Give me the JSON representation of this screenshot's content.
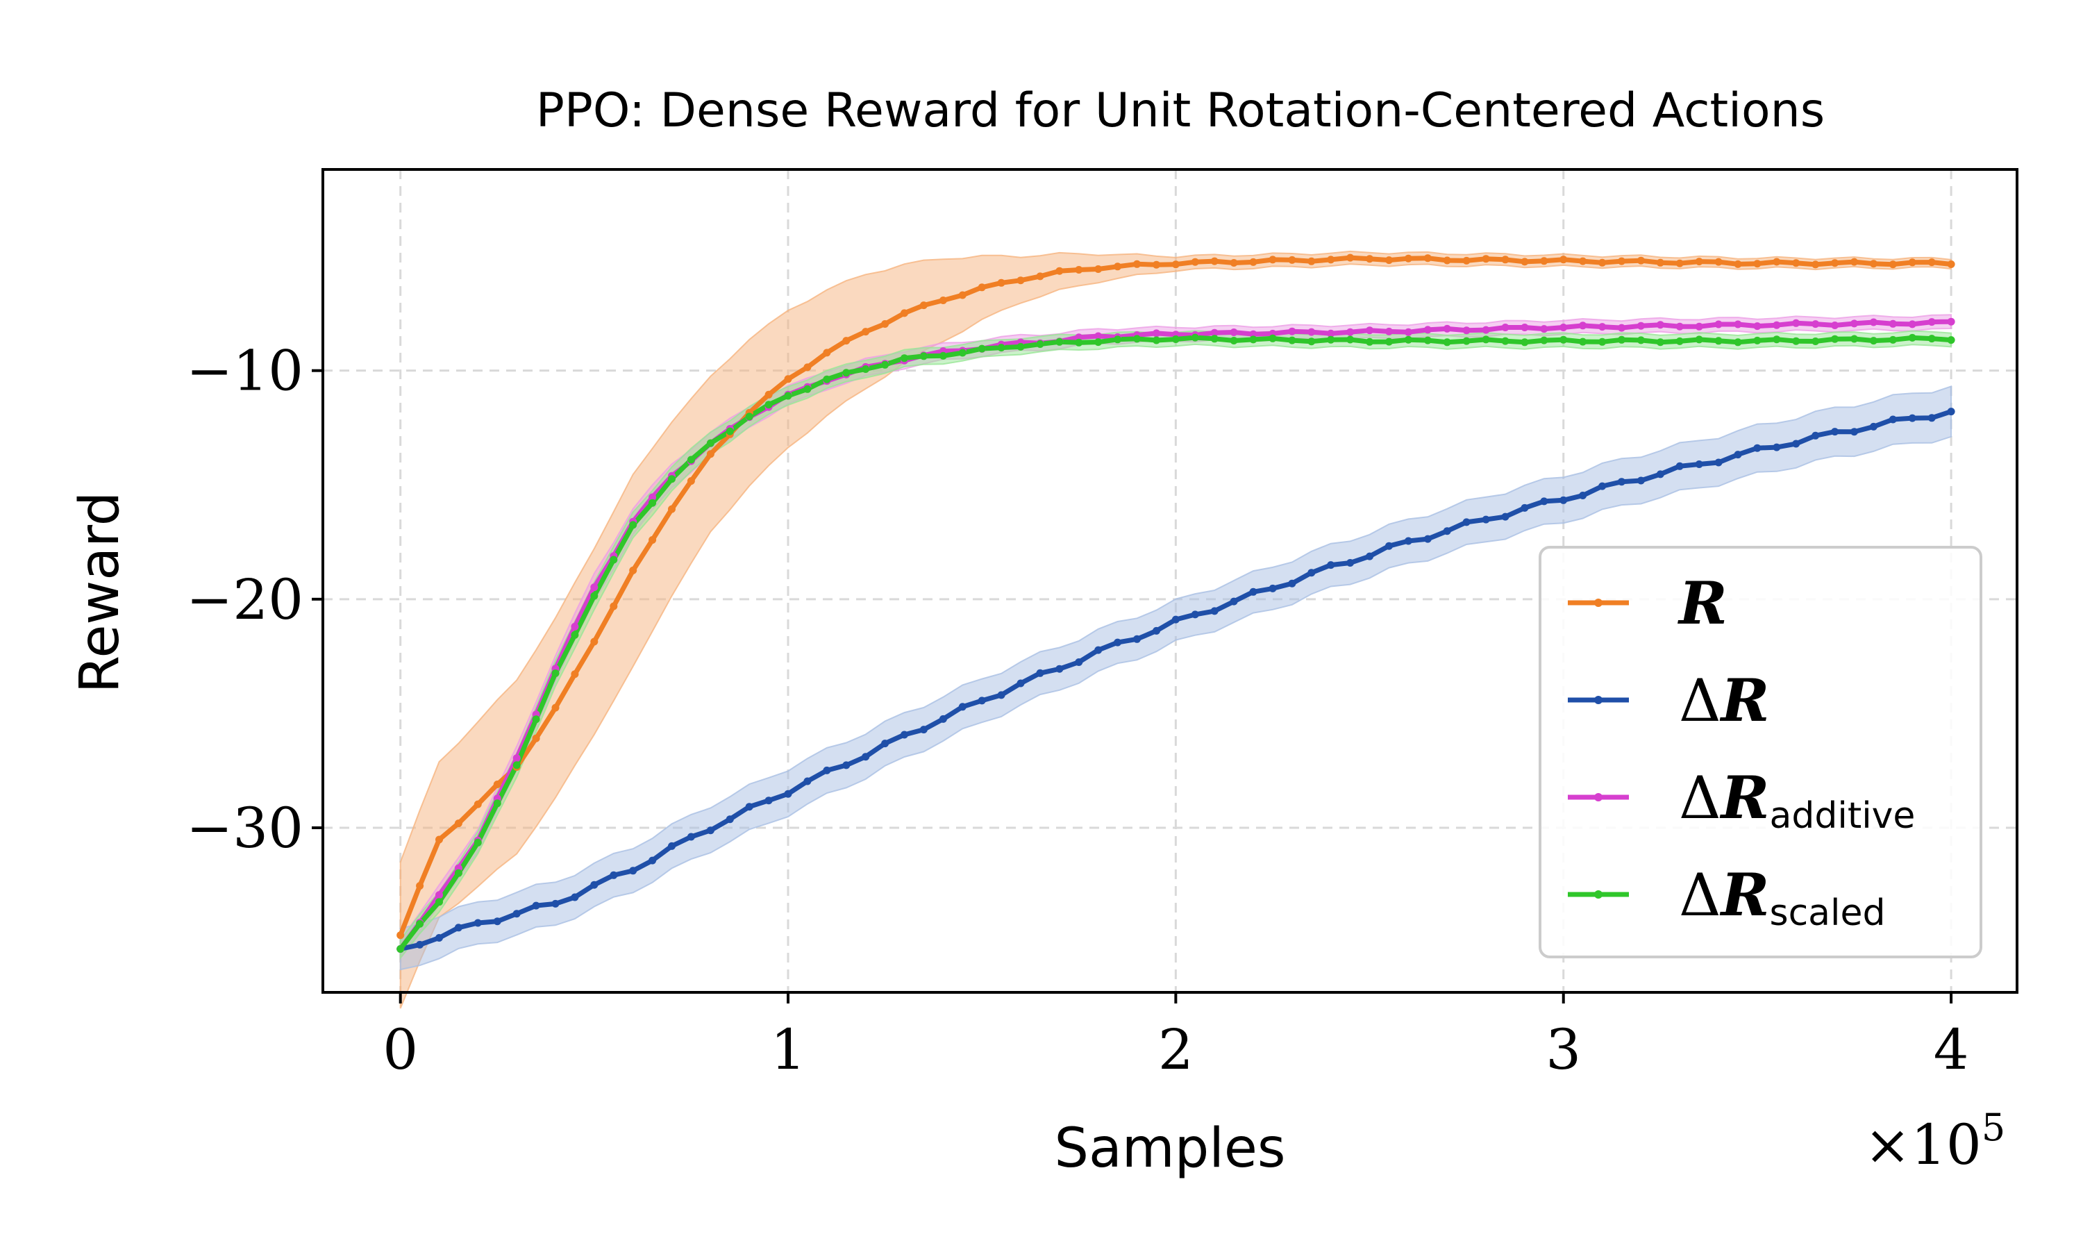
{
  "chart_data": {
    "type": "line",
    "title": "PPO: Dense Reward for Unit Rotation-Centered Actions",
    "xlabel": "Samples",
    "ylabel": "Reward",
    "x_scale_label": "×10",
    "x_scale_exponent": "5",
    "xlim": [
      -0.2,
      4.17
    ],
    "ylim": [
      -37.2,
      -1.2
    ],
    "xticks": [
      0,
      1,
      2,
      3,
      4
    ],
    "xtick_labels": [
      "0",
      "1",
      "2",
      "3",
      "4"
    ],
    "yticks": [
      -10,
      -20,
      -30
    ],
    "ytick_labels": [
      "−10",
      "−20",
      "−30"
    ],
    "grid": true,
    "legend_position": "lower-right",
    "x_step": 0.05,
    "series": [
      {
        "name": "R",
        "legend_main": "R",
        "legend_prefix": "",
        "legend_sub": "",
        "color": "#f07f24",
        "band_color": "#f6b47f",
        "anchors": [
          [
            0,
            -34.7
          ],
          [
            0.1,
            -30.5
          ],
          [
            0.2,
            -29.0
          ],
          [
            0.3,
            -27.3
          ],
          [
            0.4,
            -24.8
          ],
          [
            0.5,
            -21.8
          ],
          [
            0.6,
            -18.8
          ],
          [
            0.7,
            -16.0
          ],
          [
            0.8,
            -13.7
          ],
          [
            0.9,
            -11.8
          ],
          [
            1.0,
            -10.4
          ],
          [
            1.1,
            -9.2
          ],
          [
            1.2,
            -8.3
          ],
          [
            1.3,
            -7.5
          ],
          [
            1.4,
            -6.9
          ],
          [
            1.5,
            -6.4
          ],
          [
            1.6,
            -6.0
          ],
          [
            1.7,
            -5.7
          ],
          [
            1.8,
            -5.5
          ],
          [
            2.0,
            -5.3
          ],
          [
            2.5,
            -5.1
          ],
          [
            3.0,
            -5.2
          ],
          [
            3.5,
            -5.3
          ],
          [
            4.0,
            -5.3
          ]
        ],
        "band_anchors": [
          [
            0,
            3.2
          ],
          [
            0.3,
            3.8
          ],
          [
            0.6,
            4.2
          ],
          [
            0.8,
            3.4
          ],
          [
            1.0,
            3.0
          ],
          [
            1.2,
            2.5
          ],
          [
            1.4,
            1.8
          ],
          [
            1.6,
            1.0
          ],
          [
            1.8,
            0.6
          ],
          [
            2.0,
            0.3
          ],
          [
            4.0,
            0.2
          ]
        ]
      },
      {
        "name": "ΔR",
        "legend_main": "R",
        "legend_prefix": "Δ",
        "legend_sub": "",
        "color": "#1f4fa8",
        "band_color": "#a9bfe3",
        "anchors": [
          [
            0,
            -35.3
          ],
          [
            0.2,
            -34.2
          ],
          [
            0.4,
            -33.3
          ],
          [
            0.6,
            -31.8
          ],
          [
            0.8,
            -30.0
          ],
          [
            1.0,
            -28.4
          ],
          [
            1.2,
            -26.8
          ],
          [
            1.4,
            -25.2
          ],
          [
            1.6,
            -23.7
          ],
          [
            1.8,
            -22.3
          ],
          [
            2.0,
            -21.0
          ],
          [
            2.2,
            -19.8
          ],
          [
            2.4,
            -18.6
          ],
          [
            2.6,
            -17.5
          ],
          [
            2.8,
            -16.5
          ],
          [
            3.0,
            -15.6
          ],
          [
            3.2,
            -14.7
          ],
          [
            3.4,
            -13.9
          ],
          [
            3.6,
            -13.1
          ],
          [
            3.8,
            -12.4
          ],
          [
            4.0,
            -11.8
          ]
        ],
        "band_anchors": [
          [
            0,
            0.9
          ],
          [
            1.0,
            1.0
          ],
          [
            2.0,
            0.9
          ],
          [
            3.0,
            1.0
          ],
          [
            4.0,
            1.1
          ]
        ]
      },
      {
        "name": "ΔR additive",
        "legend_main": "R",
        "legend_prefix": "Δ",
        "legend_sub": "additive",
        "color": "#d63fcf",
        "band_color": "#ec9fe6",
        "anchors": [
          [
            0,
            -35.3
          ],
          [
            0.1,
            -33.0
          ],
          [
            0.2,
            -30.5
          ],
          [
            0.3,
            -27.0
          ],
          [
            0.4,
            -23.0
          ],
          [
            0.5,
            -19.5
          ],
          [
            0.6,
            -16.6
          ],
          [
            0.7,
            -14.6
          ],
          [
            0.8,
            -13.2
          ],
          [
            0.9,
            -12.0
          ],
          [
            1.0,
            -11.1
          ],
          [
            1.1,
            -10.4
          ],
          [
            1.2,
            -9.9
          ],
          [
            1.3,
            -9.5
          ],
          [
            1.4,
            -9.2
          ],
          [
            1.5,
            -9.0
          ],
          [
            1.6,
            -8.8
          ],
          [
            1.7,
            -8.7
          ],
          [
            1.8,
            -8.5
          ],
          [
            2.0,
            -8.4
          ],
          [
            2.5,
            -8.3
          ],
          [
            3.0,
            -8.1
          ],
          [
            3.5,
            -8.0
          ],
          [
            4.0,
            -7.9
          ]
        ],
        "band_anchors": [
          [
            0,
            0.4
          ],
          [
            0.5,
            0.6
          ],
          [
            1.0,
            0.4
          ],
          [
            2.0,
            0.3
          ],
          [
            4.0,
            0.3
          ]
        ]
      },
      {
        "name": "ΔR scaled",
        "legend_main": "R",
        "legend_prefix": "Δ",
        "legend_sub": "scaled",
        "color": "#2fc62a",
        "band_color": "#98e696",
        "anchors": [
          [
            0,
            -35.3
          ],
          [
            0.1,
            -33.2
          ],
          [
            0.2,
            -30.7
          ],
          [
            0.3,
            -27.2
          ],
          [
            0.4,
            -23.3
          ],
          [
            0.5,
            -19.8
          ],
          [
            0.6,
            -16.8
          ],
          [
            0.7,
            -14.7
          ],
          [
            0.8,
            -13.2
          ],
          [
            0.9,
            -12.0
          ],
          [
            1.0,
            -11.1
          ],
          [
            1.1,
            -10.4
          ],
          [
            1.2,
            -9.9
          ],
          [
            1.3,
            -9.5
          ],
          [
            1.4,
            -9.3
          ],
          [
            1.5,
            -9.1
          ],
          [
            1.6,
            -8.9
          ],
          [
            1.7,
            -8.8
          ],
          [
            1.8,
            -8.7
          ],
          [
            2.0,
            -8.6
          ],
          [
            2.5,
            -8.7
          ],
          [
            3.0,
            -8.7
          ],
          [
            3.5,
            -8.7
          ],
          [
            4.0,
            -8.6
          ]
        ],
        "band_anchors": [
          [
            0,
            0.4
          ],
          [
            0.5,
            0.6
          ],
          [
            1.0,
            0.4
          ],
          [
            2.0,
            0.3
          ],
          [
            4.0,
            0.3
          ]
        ]
      }
    ]
  }
}
